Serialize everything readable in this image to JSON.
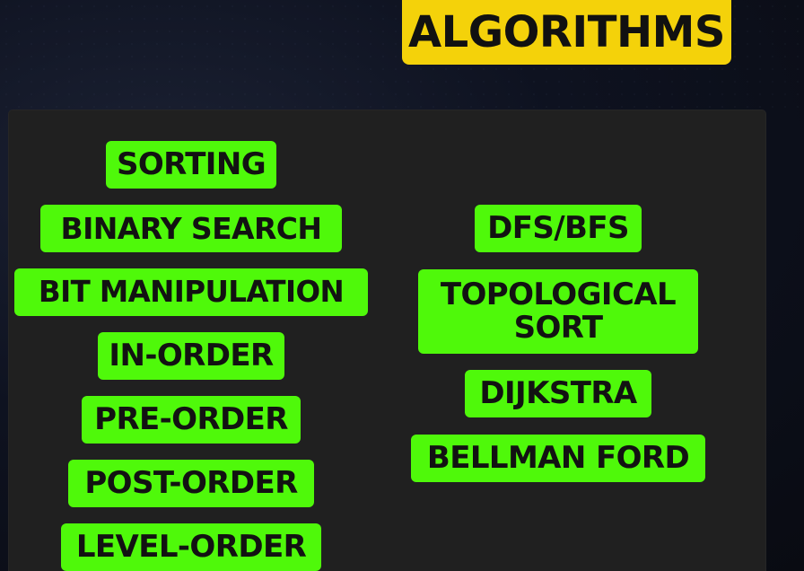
{
  "title": {
    "fragment": "g",
    "label": "ALGORITHMS"
  },
  "left_column": {
    "items": [
      {
        "label": "SORTING"
      },
      {
        "label": "BINARY SEARCH"
      },
      {
        "label": "BIT MANIPULATION"
      },
      {
        "label": "IN-ORDER"
      },
      {
        "label": "PRE-ORDER"
      },
      {
        "label": "POST-ORDER"
      },
      {
        "label": "LEVEL-ORDER"
      }
    ]
  },
  "right_column": {
    "items": [
      {
        "label": "DFS/BFS"
      },
      {
        "label_line1": "TOPOLOGICAL",
        "label_line2": "SORT"
      },
      {
        "label": "DIJKSTRA"
      },
      {
        "label": "BELLMAN FORD"
      }
    ]
  },
  "colors": {
    "title_badge": "#f4d20a",
    "pill_green": "#4ff90a",
    "board": "#202020",
    "text_dark": "#121212"
  }
}
